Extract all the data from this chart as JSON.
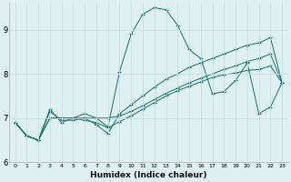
{
  "xlabel": "Humidex (Indice chaleur)",
  "ylabel": "",
  "background_color": "#dff0f0",
  "grid_color": "#c8e0e0",
  "line_color": "#1a7068",
  "xlim": [
    -0.5,
    23.5
  ],
  "ylim": [
    6,
    9.6
  ],
  "yticks": [
    6,
    7,
    8,
    9
  ],
  "xticks": [
    0,
    1,
    2,
    3,
    4,
    5,
    6,
    7,
    8,
    9,
    10,
    11,
    12,
    13,
    14,
    15,
    16,
    17,
    18,
    19,
    20,
    21,
    22,
    23
  ],
  "series": [
    [
      6.9,
      6.6,
      6.5,
      7.2,
      6.9,
      7.0,
      7.1,
      7.0,
      6.8,
      8.05,
      8.9,
      9.35,
      9.5,
      9.45,
      9.1,
      8.55,
      8.35,
      7.55,
      7.6,
      7.85,
      8.25,
      7.1,
      7.25,
      7.8
    ],
    [
      6.9,
      6.6,
      6.5,
      7.15,
      6.95,
      6.95,
      7.0,
      6.85,
      6.65,
      7.1,
      7.3,
      7.5,
      7.7,
      7.88,
      8.0,
      8.15,
      8.25,
      8.35,
      8.45,
      8.55,
      8.65,
      8.7,
      8.82,
      7.8
    ],
    [
      6.9,
      6.6,
      6.5,
      7.0,
      7.0,
      7.0,
      7.0,
      7.0,
      7.0,
      7.05,
      7.15,
      7.28,
      7.42,
      7.56,
      7.68,
      7.8,
      7.9,
      8.0,
      8.1,
      8.18,
      8.28,
      8.35,
      8.45,
      7.8
    ],
    [
      6.9,
      6.6,
      6.5,
      7.0,
      7.0,
      7.0,
      6.95,
      6.9,
      6.78,
      6.92,
      7.05,
      7.2,
      7.35,
      7.5,
      7.62,
      7.72,
      7.82,
      7.92,
      7.98,
      8.02,
      8.08,
      8.1,
      8.18,
      7.8
    ]
  ]
}
